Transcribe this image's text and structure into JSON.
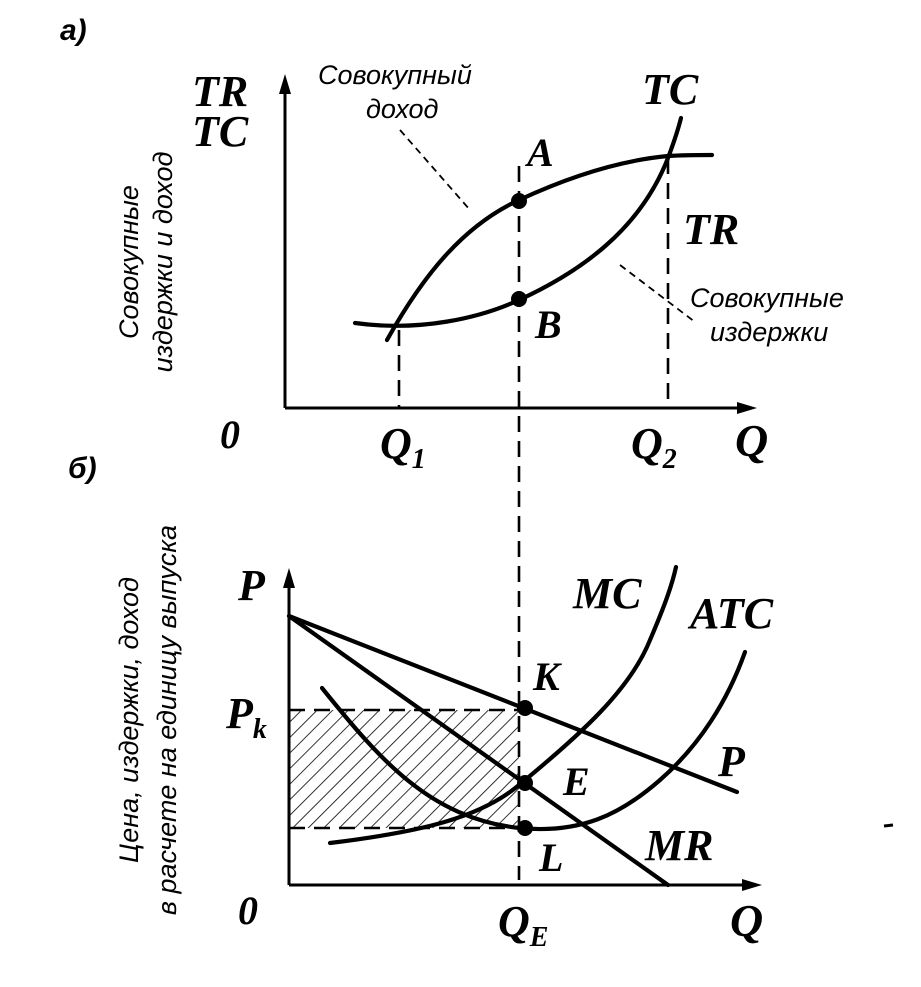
{
  "panel_a": {
    "tag": "а)",
    "y_axis_label_1": "TR",
    "y_axis_label_2": "TC",
    "y_axis_title_1": "Совокупные",
    "y_axis_title_2": "издержки и доход",
    "origin": "0",
    "x_axis_label": "Q",
    "q1_main": "Q",
    "q1_sub": "1",
    "q2_main": "Q",
    "q2_sub": "2",
    "curve_tc_label": "TC",
    "curve_tr_label": "TR",
    "point_a": "A",
    "point_b": "B",
    "note_revenue_1": "Совокупный",
    "note_revenue_2": "доход",
    "note_costs_1": "Совокупные",
    "note_costs_2": "издержки"
  },
  "panel_b": {
    "tag": "б)",
    "y_axis_label": "P",
    "y_axis_title_1": "Цена, издержки, доход",
    "y_axis_title_2": "в расчете на единицу выпуска",
    "origin": "0",
    "x_axis_label": "Q",
    "pk_main": "P",
    "pk_sub": "k",
    "qe_main": "Q",
    "qe_sub": "E",
    "curve_mc_label": "MC",
    "curve_atc_label": "ATC",
    "curve_p_label": "P",
    "curve_mr_label": "MR",
    "point_k": "K",
    "point_e": "E",
    "point_l": "L"
  }
}
